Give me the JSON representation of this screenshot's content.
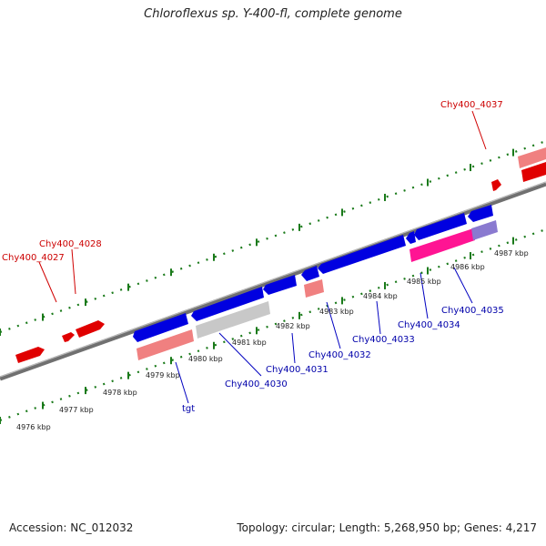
{
  "title": "Chloroflexus sp. Y-400-fl, complete genome",
  "footer": {
    "accession": "Accession: NC_012032",
    "summary": "Topology: circular; Length: 5,268,950 bp; Genes: 4,217"
  },
  "colors": {
    "forward_gene": "#ff0000",
    "forward_cds": "#f08080",
    "reverse_gene": "#0000e0",
    "reverse_cds_grey": "#c8c8c8",
    "reverse_cds_pink": "#ff1493",
    "reverse_cds_purple": "#8a7ad0",
    "forward_label": "#cc0000",
    "reverse_label": "#0000aa",
    "dots": "#1a7a1a",
    "backbone": "#808080"
  },
  "scale_ticks": [
    "4976 kbp",
    "4977 kbp",
    "4978 kbp",
    "4979 kbp",
    "4980 kbp",
    "4981 kbp",
    "4982 kbp",
    "4983 kbp",
    "4984 kbp",
    "4985 kbp",
    "4986 kbp",
    "4987 kbp"
  ],
  "gene_labels": {
    "forward": [
      "Chy400_4037",
      "Chy400_4028",
      "Chy400_4027"
    ],
    "reverse": [
      "Chy400_4035",
      "Chy400_4034",
      "Chy400_4033",
      "Chy400_4032",
      "Chy400_4031",
      "Chy400_4030",
      "tgt"
    ]
  }
}
